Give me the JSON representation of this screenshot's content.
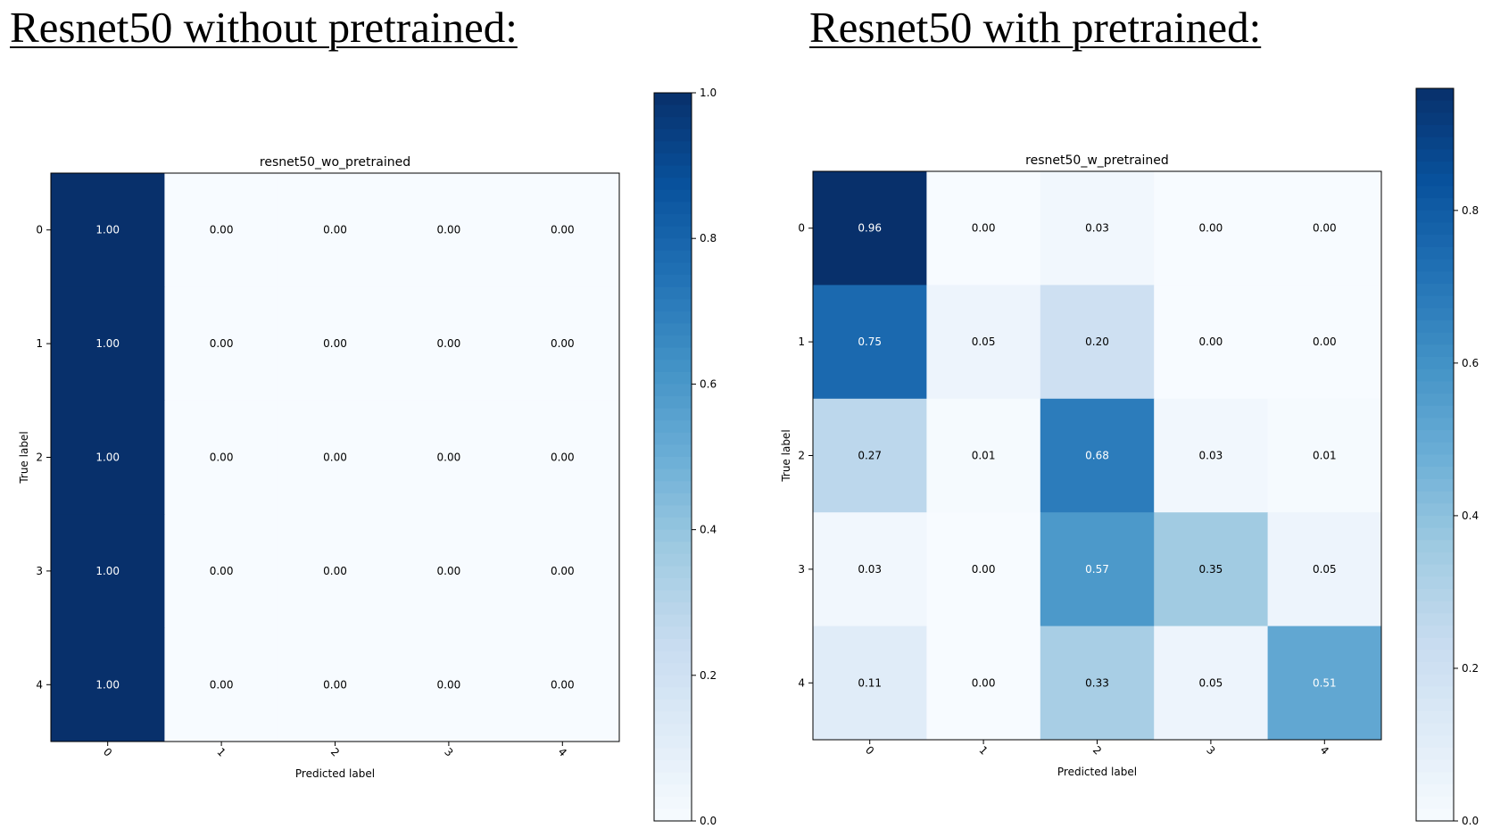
{
  "headings": {
    "left": "Resnet50 without pretrained:",
    "right": "Resnet50 with pretrained:"
  },
  "chart_data": [
    {
      "type": "heatmap",
      "title": "resnet50_wo_pretrained",
      "xlabel": "Predicted label",
      "ylabel": "True label",
      "x_categories": [
        "0",
        "1",
        "2",
        "3",
        "4"
      ],
      "y_categories": [
        "0",
        "1",
        "2",
        "3",
        "4"
      ],
      "values": [
        [
          1.0,
          0.0,
          0.0,
          0.0,
          0.0
        ],
        [
          1.0,
          0.0,
          0.0,
          0.0,
          0.0
        ],
        [
          1.0,
          0.0,
          0.0,
          0.0,
          0.0
        ],
        [
          1.0,
          0.0,
          0.0,
          0.0,
          0.0
        ],
        [
          1.0,
          0.0,
          0.0,
          0.0,
          0.0
        ]
      ],
      "colorscale": "Blues",
      "colorbar": {
        "range": [
          0.0,
          1.0
        ],
        "ticks": [
          "0.0",
          "0.2",
          "0.4",
          "0.6",
          "0.8",
          "1.0"
        ]
      }
    },
    {
      "type": "heatmap",
      "title": "resnet50_w_pretrained",
      "xlabel": "Predicted label",
      "ylabel": "True label",
      "x_categories": [
        "0",
        "1",
        "2",
        "3",
        "4"
      ],
      "y_categories": [
        "0",
        "1",
        "2",
        "3",
        "4"
      ],
      "values": [
        [
          0.96,
          0.0,
          0.03,
          0.0,
          0.0
        ],
        [
          0.75,
          0.05,
          0.2,
          0.0,
          0.0
        ],
        [
          0.27,
          0.01,
          0.68,
          0.03,
          0.01
        ],
        [
          0.03,
          0.0,
          0.57,
          0.35,
          0.05
        ],
        [
          0.11,
          0.0,
          0.33,
          0.05,
          0.51
        ]
      ],
      "colorscale": "Blues",
      "colorbar": {
        "range": [
          0.0,
          0.96
        ],
        "ticks": [
          "0.0",
          "0.2",
          "0.4",
          "0.6",
          "0.8"
        ]
      }
    }
  ]
}
